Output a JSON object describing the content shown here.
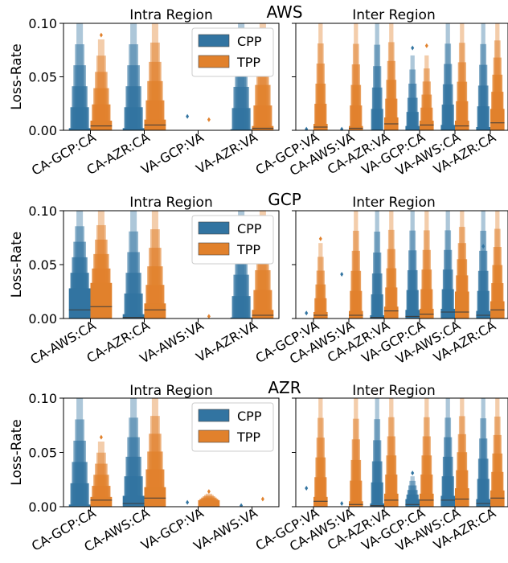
{
  "chart_data": [
    {
      "type": "boxen",
      "provider_title": "AWS",
      "panels": [
        {
          "title": "Intra Region",
          "categories": [
            "CA-GCP:CA",
            "CA-AZR:CA",
            "VA-GCP:VA",
            "VA-AZR:VA"
          ],
          "ylabel": "Loss-Rate",
          "ylim": [
            0,
            0.1
          ],
          "yticks": [
            "0.00",
            "0.05",
            "0.10"
          ],
          "legend": [
            "CPP",
            "TPP"
          ],
          "series": [
            {
              "name": "CPP",
              "color": "#3274a1",
              "medians": [
                0.0,
                0.0,
                0.0,
                0.0
              ],
              "q3": [
                0.002,
                0.002,
                0.0,
                0.001
              ],
              "max": [
                0.1,
                0.1,
                0.0,
                0.1
              ],
              "outliers": [
                [],
                [],
                [
                  0.013
                ],
                []
              ]
            },
            {
              "name": "TPP",
              "color": "#e1812c",
              "medians": [
                0.004,
                0.005,
                0.0,
                0.002
              ],
              "q3": [
                0.009,
                0.01,
                0.0,
                0.004
              ],
              "max": [
                0.085,
                0.1,
                0.0,
                0.1
              ],
              "outliers": [
                [
                  0.089
                ],
                [],
                [
                  0.01
                ],
                []
              ]
            }
          ]
        },
        {
          "title": "Inter Region",
          "categories": [
            "CA-GCP:VA",
            "CA-AWS:VA",
            "CA-AZR:VA",
            "VA-GCP:CA",
            "VA-AWS:CA",
            "VA-AZR:CA"
          ],
          "ylim": [
            0,
            0.1
          ],
          "series": [
            {
              "name": "CPP",
              "color": "#3274a1",
              "medians": [
                0.0,
                0.0,
                0.0,
                0.0,
                0.0,
                0.0
              ],
              "q3": [
                0.0,
                0.0,
                0.0,
                0.004,
                0.005,
                0.003
              ],
              "max": [
                0.0,
                0.0,
                0.1,
                0.07,
                0.1,
                0.1
              ],
              "outliers": [
                [
                  0.001
                ],
                [
                  0.001
                ],
                [],
                [
                  0.077
                ],
                [],
                []
              ]
            },
            {
              "name": "TPP",
              "color": "#e1812c",
              "medians": [
                0.003,
                0.002,
                0.006,
                0.005,
                0.004,
                0.007
              ],
              "q3": [
                0.006,
                0.004,
                0.012,
                0.009,
                0.009,
                0.02
              ],
              "max": [
                0.1,
                0.1,
                0.1,
                0.07,
                0.1,
                0.1
              ],
              "outliers": [
                [],
                [],
                [],
                [
                  0.079
                ],
                [],
                []
              ]
            }
          ]
        }
      ]
    },
    {
      "type": "boxen",
      "provider_title": "GCP",
      "panels": [
        {
          "title": "Intra Region",
          "categories": [
            "CA-AWS:CA",
            "CA-AZR:CA",
            "VA-AWS:VA",
            "VA-AZR:VA"
          ],
          "ylabel": "Loss-Rate",
          "ylim": [
            0,
            0.1
          ],
          "yticks": [
            "0.00",
            "0.05",
            "0.10"
          ],
          "legend": [
            "CPP",
            "TPP"
          ],
          "series": [
            {
              "name": "CPP",
              "color": "#3274a1",
              "medians": [
                0.008,
                0.001,
                0.0,
                0.0
              ],
              "q3": [
                0.028,
                0.004,
                0.0,
                0.001
              ],
              "max": [
                0.1,
                0.1,
                0.0,
                0.1
              ],
              "outliers": [
                [],
                [],
                [],
                []
              ]
            },
            {
              "name": "TPP",
              "color": "#e1812c",
              "medians": [
                0.011,
                0.008,
                0.0,
                0.003
              ],
              "q3": [
                0.033,
                0.014,
                0.0,
                0.008
              ],
              "max": [
                0.1,
                0.1,
                0.0,
                0.1
              ],
              "outliers": [
                [],
                [],
                [
                  0.002
                ],
                []
              ]
            }
          ]
        },
        {
          "title": "Inter Region",
          "categories": [
            "CA-GCP:VA",
            "CA-AWS:VA",
            "CA-AZR:VA",
            "VA-GCP:CA",
            "VA-AWS:CA",
            "VA-AZR:CA"
          ],
          "ylim": [
            0,
            0.1
          ],
          "series": [
            {
              "name": "CPP",
              "color": "#3274a1",
              "medians": [
                0.0,
                0.0,
                0.001,
                0.002,
                0.006,
                0.003
              ],
              "q3": [
                0.0,
                0.0,
                0.003,
                0.008,
                0.009,
                0.007
              ],
              "max": [
                0.0,
                0.0,
                0.1,
                0.1,
                0.1,
                0.1
              ],
              "outliers": [
                [
                  0.005
                ],
                [
                  0.041
                ],
                [],
                [],
                [],
                [
                  0.067
                ]
              ]
            },
            {
              "name": "TPP",
              "color": "#e1812c",
              "medians": [
                0.003,
                0.003,
                0.007,
                0.004,
                0.006,
                0.008
              ],
              "q3": [
                0.006,
                0.007,
                0.011,
                0.009,
                0.025,
                0.016
              ],
              "max": [
                0.07,
                0.1,
                0.1,
                0.1,
                0.1,
                0.1
              ],
              "outliers": [
                [
                  0.074
                ],
                [],
                [],
                [],
                [],
                []
              ]
            }
          ]
        }
      ]
    },
    {
      "type": "boxen",
      "provider_title": "AZR",
      "panels": [
        {
          "title": "Intra Region",
          "categories": [
            "CA-GCP:CA",
            "CA-AWS:CA",
            "VA-GCP:VA",
            "VA-AWS:VA"
          ],
          "ylabel": "Loss-Rate",
          "ylim": [
            0,
            0.1
          ],
          "yticks": [
            "0.00",
            "0.05",
            "0.10"
          ],
          "legend": [
            "CPP",
            "TPP"
          ],
          "series": [
            {
              "name": "CPP",
              "color": "#3274a1",
              "medians": [
                0.0,
                0.003,
                0.0,
                0.0
              ],
              "q3": [
                0.002,
                0.01,
                0.0,
                0.0
              ],
              "max": [
                0.1,
                0.1,
                0.0,
                0.0
              ],
              "outliers": [
                [],
                [],
                [
                  0.004
                ],
                [
                  0.001
                ]
              ]
            },
            {
              "name": "TPP",
              "color": "#e1812c",
              "medians": [
                0.006,
                0.008,
                0.0,
                0.0
              ],
              "q3": [
                0.009,
                0.018,
                0.006,
                0.0
              ],
              "max": [
                0.06,
                0.1,
                0.012,
                0.0
              ],
              "outliers": [
                [
                  0.064
                ],
                [],
                [
                  0.014
                ],
                [
                  0.007
                ]
              ]
            }
          ]
        },
        {
          "title": "Inter Region",
          "categories": [
            "CA-GCP:VA",
            "CA-AWS:VA",
            "CA-AZR:VA",
            "VA-GCP:CA",
            "VA-AWS:CA",
            "VA-AZR:CA"
          ],
          "ylim": [
            0,
            0.1
          ],
          "series": [
            {
              "name": "CPP",
              "color": "#3274a1",
              "medians": [
                0.0,
                0.0,
                0.001,
                0.002,
                0.006,
                0.003
              ],
              "q3": [
                0.0,
                0.0,
                0.003,
                0.007,
                0.01,
                0.007
              ],
              "max": [
                0.0,
                0.0,
                0.1,
                0.028,
                0.1,
                0.1
              ],
              "outliers": [
                [
                  0.017
                ],
                [
                  0.003
                ],
                [],
                [
                  0.031
                ],
                [],
                []
              ]
            },
            {
              "name": "TPP",
              "color": "#e1812c",
              "medians": [
                0.005,
                0.002,
                0.006,
                0.006,
                0.007,
                0.008
              ],
              "q3": [
                0.009,
                0.005,
                0.012,
                0.012,
                0.017,
                0.015
              ],
              "max": [
                0.1,
                0.1,
                0.1,
                0.1,
                0.1,
                0.1
              ],
              "outliers": [
                [],
                [],
                [],
                [],
                [],
                []
              ]
            }
          ]
        }
      ]
    }
  ]
}
